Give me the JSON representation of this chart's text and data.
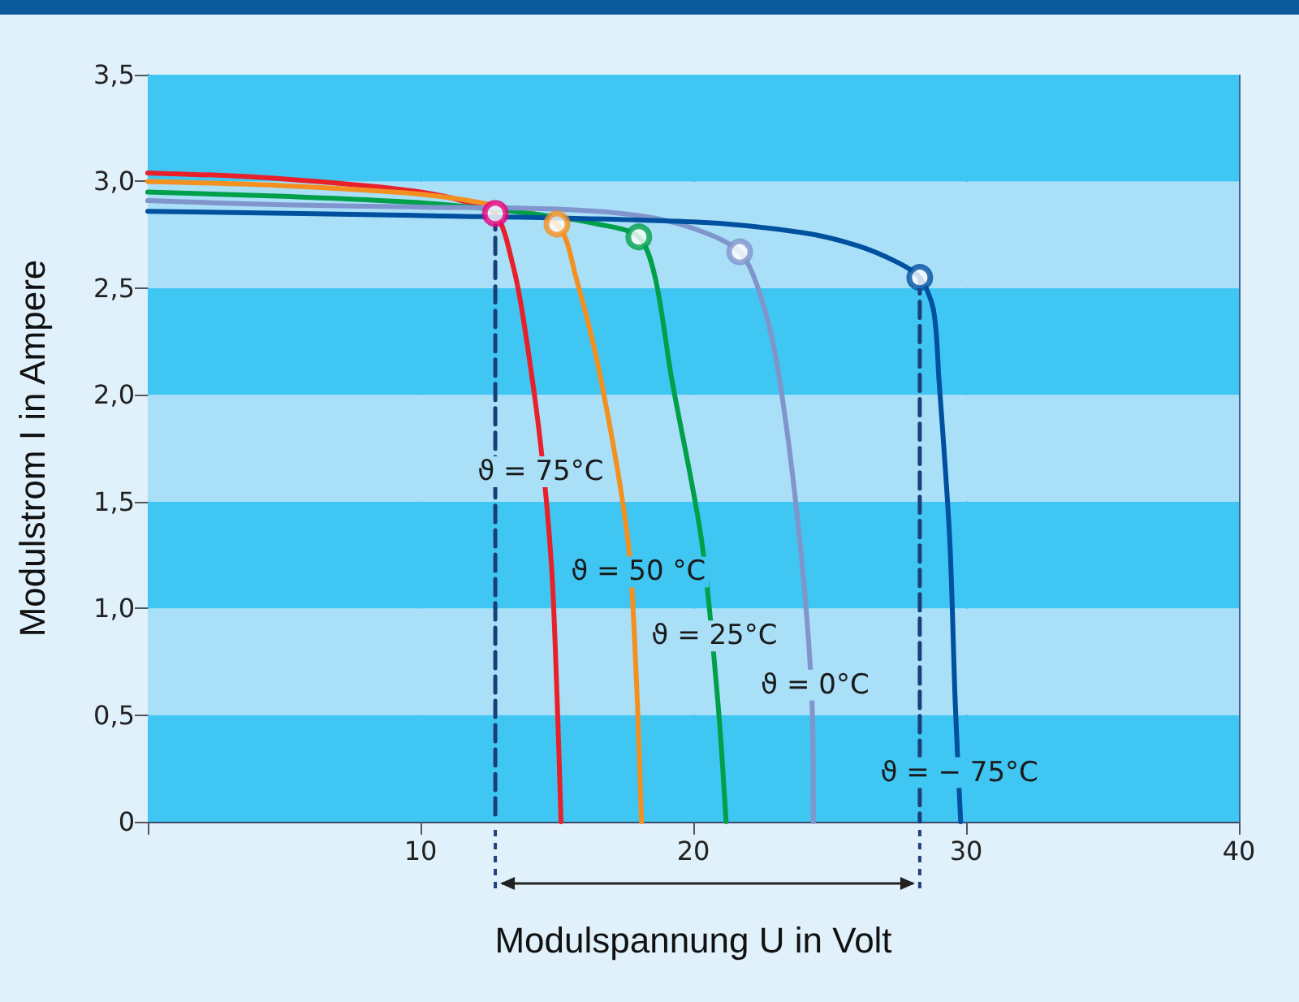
{
  "chart_data": {
    "type": "line",
    "xlabel": "Modulspannung U in Volt",
    "ylabel": "Modulstrom I in Ampere",
    "xlim": [
      0,
      40
    ],
    "xticks": [
      {
        "value": 0,
        "label": null
      },
      10,
      20,
      30,
      40
    ],
    "ylim": [
      0,
      3.5
    ],
    "yticks": [
      0,
      {
        "value": 0.5,
        "label": "0,5"
      },
      {
        "value": 1,
        "label": "1,0"
      },
      {
        "value": 1.5,
        "label": "1,5"
      },
      {
        "value": 2,
        "label": "2,0"
      },
      {
        "value": 2.5,
        "label": "2,5"
      },
      {
        "value": 3,
        "label": "3,0"
      },
      {
        "value": 3.5,
        "label": "3,5"
      }
    ],
    "grid": "x",
    "marker": "none",
    "bands": [
      {
        "axis": "y",
        "from": 0,
        "to": 0.5,
        "color": "#40c6f2"
      },
      {
        "axis": "y",
        "from": 0.5,
        "to": 1,
        "color": "#aadff8"
      },
      {
        "axis": "y",
        "from": 1,
        "to": 1.5,
        "color": "#40c6f2"
      },
      {
        "axis": "y",
        "from": 1.5,
        "to": 2,
        "color": "#aadff8"
      },
      {
        "axis": "y",
        "from": 2,
        "to": 2.5,
        "color": "#40c6f2"
      },
      {
        "axis": "y",
        "from": 2.5,
        "to": 3,
        "color": "#aadff8"
      },
      {
        "axis": "y",
        "from": 3,
        "to": 3.5,
        "color": "#40c6f2"
      }
    ],
    "series": [
      {
        "color": "#e8202a",
        "x": [
          0,
          4,
          8,
          10,
          11.5,
          12.74,
          13.4,
          13.8,
          14.4,
          14.8,
          15.0,
          15.15
        ],
        "values": [
          3.04,
          3.02,
          2.98,
          2.95,
          2.91,
          2.85,
          2.6,
          2.33,
          1.77,
          1.2,
          0.6,
          0
        ]
      },
      {
        "color": "#f39020",
        "x": [
          0,
          5,
          10,
          13,
          15.0,
          15.7,
          16.6,
          17.6,
          17.9,
          18.1
        ],
        "values": [
          3.0,
          2.98,
          2.94,
          2.88,
          2.8,
          2.55,
          2.08,
          1.32,
          0.7,
          0
        ]
      },
      {
        "color": "#00a04a",
        "x": [
          0,
          5,
          10,
          14,
          16.5,
          18.0,
          18.6,
          19.2,
          20.3,
          20.9,
          21.2
        ],
        "values": [
          2.95,
          2.93,
          2.9,
          2.85,
          2.8,
          2.74,
          2.55,
          2.08,
          1.32,
          0.56,
          0
        ]
      },
      {
        "color": "#7f95cc",
        "x": [
          0,
          5,
          10,
          15,
          18,
          20,
          21.7,
          22.5,
          23.15,
          23.9,
          24.35,
          24.4
        ],
        "values": [
          2.91,
          2.89,
          2.88,
          2.87,
          2.84,
          2.78,
          2.67,
          2.45,
          2.08,
          1.32,
          0.56,
          0
        ]
      },
      {
        "color": "#0050a0",
        "x": [
          0,
          10,
          20,
          24,
          26,
          27.5,
          28.3,
          28.8,
          29.0,
          29.4,
          29.6,
          29.8
        ],
        "values": [
          2.86,
          2.84,
          2.81,
          2.76,
          2.7,
          2.62,
          2.55,
          2.4,
          2.08,
          1.32,
          0.56,
          0
        ]
      },
      {
        "color": "#1a3e78",
        "line_style": "dashed",
        "x": [
          12.74,
          12.74
        ],
        "values": [
          2.85,
          0
        ]
      },
      {
        "color": "#1a3e78",
        "line_style": "dashed",
        "x": [
          28.3,
          28.3
        ],
        "values": [
          2.55,
          0
        ]
      },
      {
        "type": "scatter",
        "marker": "circle",
        "x": [
          12.74,
          15.0,
          18.0,
          21.7,
          28.3
        ],
        "values": [
          2.85,
          2.8,
          2.74,
          2.67,
          2.55
        ],
        "colors": [
          "#e6007e",
          "#f39020",
          "#00a04a",
          "#7f95cc",
          "#0050a0"
        ]
      }
    ],
    "annotations": [
      {
        "text": "ϑ = 75°C",
        "x": 14.4,
        "y": 1.64
      },
      {
        "text": "ϑ = 50 °C",
        "x": 17.98,
        "y": 1.17
      },
      {
        "text": "ϑ = 25°C",
        "x": 20.77,
        "y": 0.87
      },
      {
        "text": "ϑ = 0°C",
        "x": 24.46,
        "y": 0.64
      },
      {
        "text": "ϑ = − 75°C",
        "x": 29.75,
        "y": 0.23
      }
    ]
  }
}
